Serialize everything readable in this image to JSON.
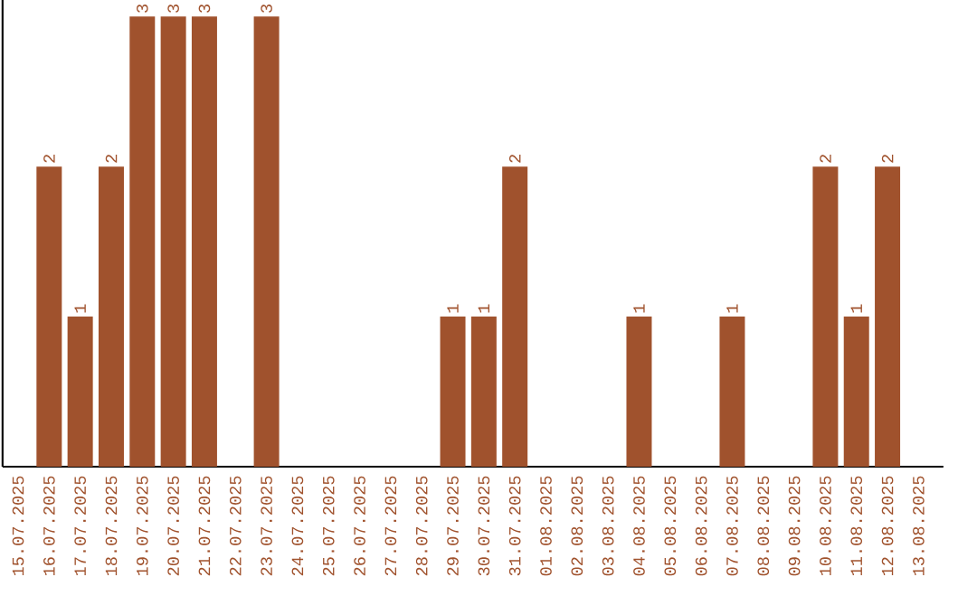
{
  "chart_data": {
    "type": "bar",
    "categories": [
      "15.07.2025",
      "16.07.2025",
      "17.07.2025",
      "18.07.2025",
      "19.07.2025",
      "20.07.2025",
      "21.07.2025",
      "22.07.2025",
      "23.07.2025",
      "24.07.2025",
      "25.07.2025",
      "26.07.2025",
      "27.07.2025",
      "28.07.2025",
      "29.07.2025",
      "30.07.2025",
      "31.07.2025",
      "01.08.2025",
      "02.08.2025",
      "03.08.2025",
      "04.08.2025",
      "05.08.2025",
      "06.08.2025",
      "07.08.2025",
      "08.08.2025",
      "09.08.2025",
      "10.08.2025",
      "11.08.2025",
      "12.08.2025",
      "13.08.2025"
    ],
    "values": [
      0,
      2,
      1,
      2,
      3,
      3,
      3,
      0,
      3,
      0,
      0,
      0,
      0,
      0,
      1,
      1,
      2,
      0,
      0,
      0,
      1,
      0,
      0,
      1,
      0,
      0,
      2,
      1,
      2,
      0
    ],
    "value_labels": [
      null,
      "2",
      "1",
      "2",
      "3",
      "3",
      "3",
      null,
      "3",
      null,
      null,
      null,
      null,
      null,
      "1",
      "1",
      "2",
      null,
      null,
      null,
      "1",
      null,
      null,
      "1",
      null,
      null,
      "2",
      "1",
      "2",
      null
    ],
    "color": "#a0522d",
    "tick_labels": "x"
  }
}
